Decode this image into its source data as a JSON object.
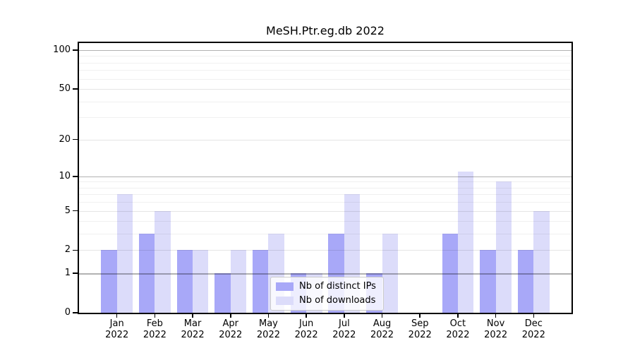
{
  "page": {
    "background": "#ffffff"
  },
  "chart_data": {
    "type": "bar",
    "title": "MeSH.Ptr.eg.db 2022",
    "categories": [
      "Jan",
      "Feb",
      "Mar",
      "Apr",
      "May",
      "Jun",
      "Jul",
      "Aug",
      "Sep",
      "Oct",
      "Nov",
      "Dec"
    ],
    "year_label": "2022",
    "series": [
      {
        "name": "Nb of distinct IPs",
        "color": "#a8a8f8",
        "values": [
          2,
          3,
          2,
          1,
          2,
          1,
          3,
          1,
          0,
          3,
          2,
          2
        ]
      },
      {
        "name": "Nb of downloads",
        "color": "#dcdcfa",
        "values": [
          7,
          5,
          2,
          2,
          3,
          1,
          7,
          3,
          0,
          11,
          9,
          5
        ]
      }
    ],
    "yscale": "log1p",
    "ylim": [
      0,
      110
    ],
    "yticks": [
      0,
      1,
      2,
      5,
      10,
      20,
      50,
      100
    ],
    "gridlines": {
      "major": [
        1,
        10,
        100
      ],
      "labeled_minor": [
        2,
        5,
        20,
        50
      ],
      "minor": [
        3,
        4,
        6,
        7,
        8,
        9,
        30,
        40,
        60,
        70,
        80,
        90
      ]
    },
    "grid": true,
    "legend_position": "lower center",
    "colors": {
      "axis": "#000000",
      "grid_major": "#b3b3b3",
      "grid_minor": "#efefef",
      "text": "#000000"
    }
  }
}
